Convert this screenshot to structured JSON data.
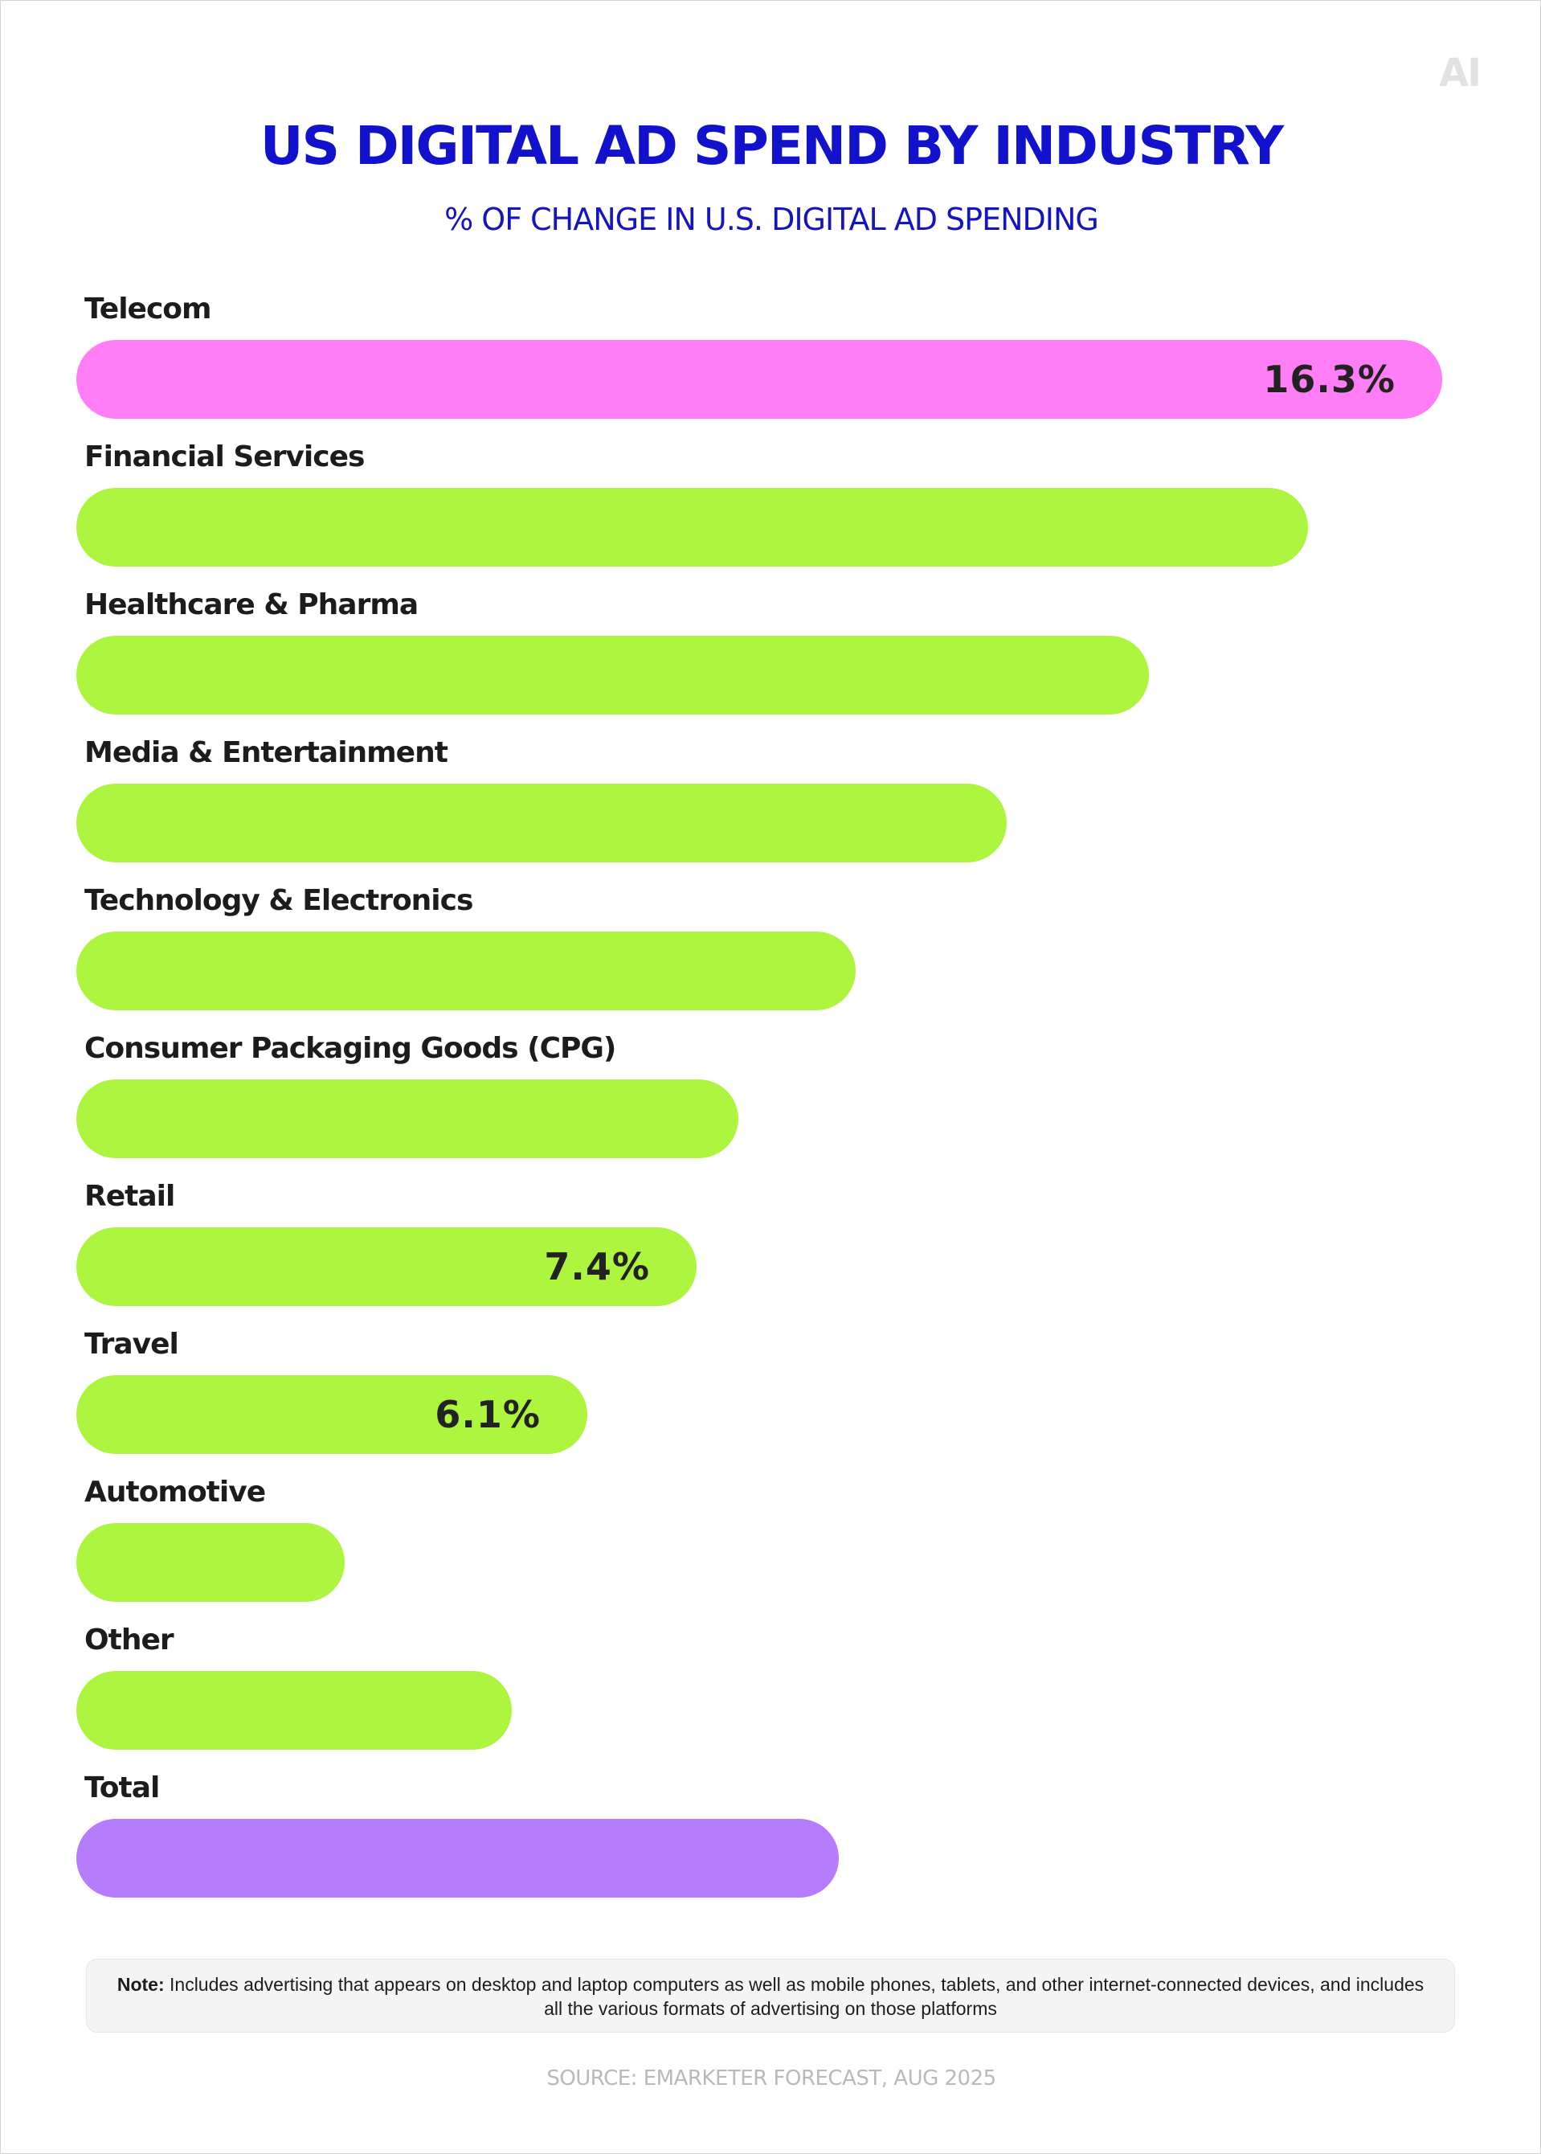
{
  "logo_text": "AI",
  "title": "US DIGITAL AD SPEND BY INDUSTRY",
  "subtitle": "% OF CHANGE IN U.S. DIGITAL AD SPENDING",
  "note": {
    "label": "Note:",
    "text": "Includes advertising that appears on desktop and laptop computers as well as mobile phones, tablets, and other internet-connected devices, and includes all the various formats of advertising on those platforms"
  },
  "source": "SOURCE: EMARKETER FORECAST, AUG 2025",
  "colors": {
    "highlight": "#ff7ef5",
    "default": "#adf53e",
    "total": "#b57cfc",
    "title": "#1212cc"
  },
  "chart_data": {
    "type": "bar",
    "orientation": "horizontal",
    "categories": [
      "Telecom",
      "Financial Services",
      "Healthcare & Pharma",
      "Media & Entertainment",
      "Technology & Electronics",
      "Consumer Packaging Goods (CPG)",
      "Retail",
      "Travel",
      "Automotive",
      "Other",
      "Total"
    ],
    "values": [
      16.3,
      14.7,
      12.8,
      11.1,
      9.3,
      7.9,
      7.4,
      6.1,
      3.2,
      5.2,
      9.1
    ],
    "labels": [
      "16.3%",
      "",
      "",
      "",
      "",
      "",
      "7.4%",
      "6.1%",
      "",
      "",
      ""
    ],
    "bar_colors": [
      "#ff7ef5",
      "#adf53e",
      "#adf53e",
      "#adf53e",
      "#adf53e",
      "#adf53e",
      "#adf53e",
      "#adf53e",
      "#adf53e",
      "#adf53e",
      "#b57cfc"
    ],
    "xlim": [
      0,
      16.3
    ],
    "grid": false,
    "legend": "none"
  }
}
